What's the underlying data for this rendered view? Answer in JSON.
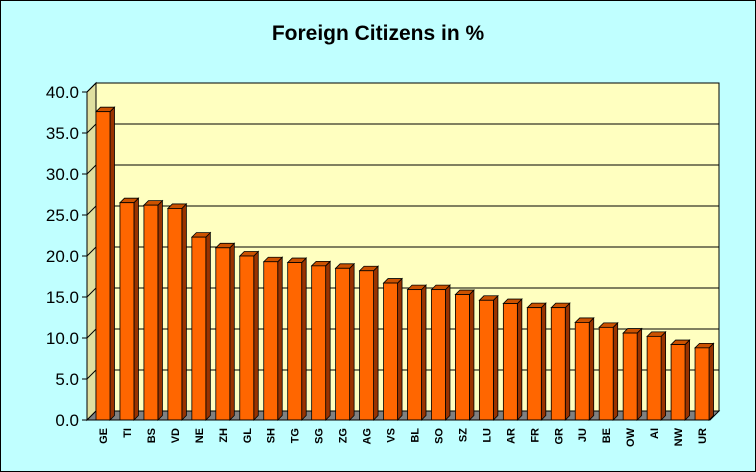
{
  "chart_data": {
    "type": "bar",
    "title": "Foreign Citizens in %",
    "xlabel": "",
    "ylabel": "",
    "ylim": [
      0,
      40
    ],
    "yticks": [
      "0.0",
      "5.0",
      "10.0",
      "15.0",
      "20.0",
      "25.0",
      "30.0",
      "35.0",
      "40.0"
    ],
    "grid": true,
    "categories": [
      "GE",
      "TI",
      "BS",
      "VD",
      "NE",
      "ZH",
      "GL",
      "SH",
      "TG",
      "SG",
      "ZG",
      "AG",
      "VS",
      "BL",
      "SO",
      "SZ",
      "LU",
      "AR",
      "FR",
      "GR",
      "JU",
      "BE",
      "OW",
      "AI",
      "NW",
      "UR"
    ],
    "values": [
      37.6,
      26.5,
      26.2,
      25.8,
      22.3,
      21.0,
      20.0,
      19.3,
      19.2,
      18.8,
      18.5,
      18.2,
      16.7,
      15.9,
      15.9,
      15.3,
      14.6,
      14.2,
      13.7,
      13.7,
      11.9,
      11.3,
      10.6,
      10.2,
      9.2,
      8.8
    ],
    "colors": {
      "background": "#c0ffff",
      "plot_area": "#ffffc0",
      "bar_front": "#ff6600",
      "bar_side": "#993300",
      "bar_top": "#cc5200",
      "floor": "#808080"
    }
  }
}
